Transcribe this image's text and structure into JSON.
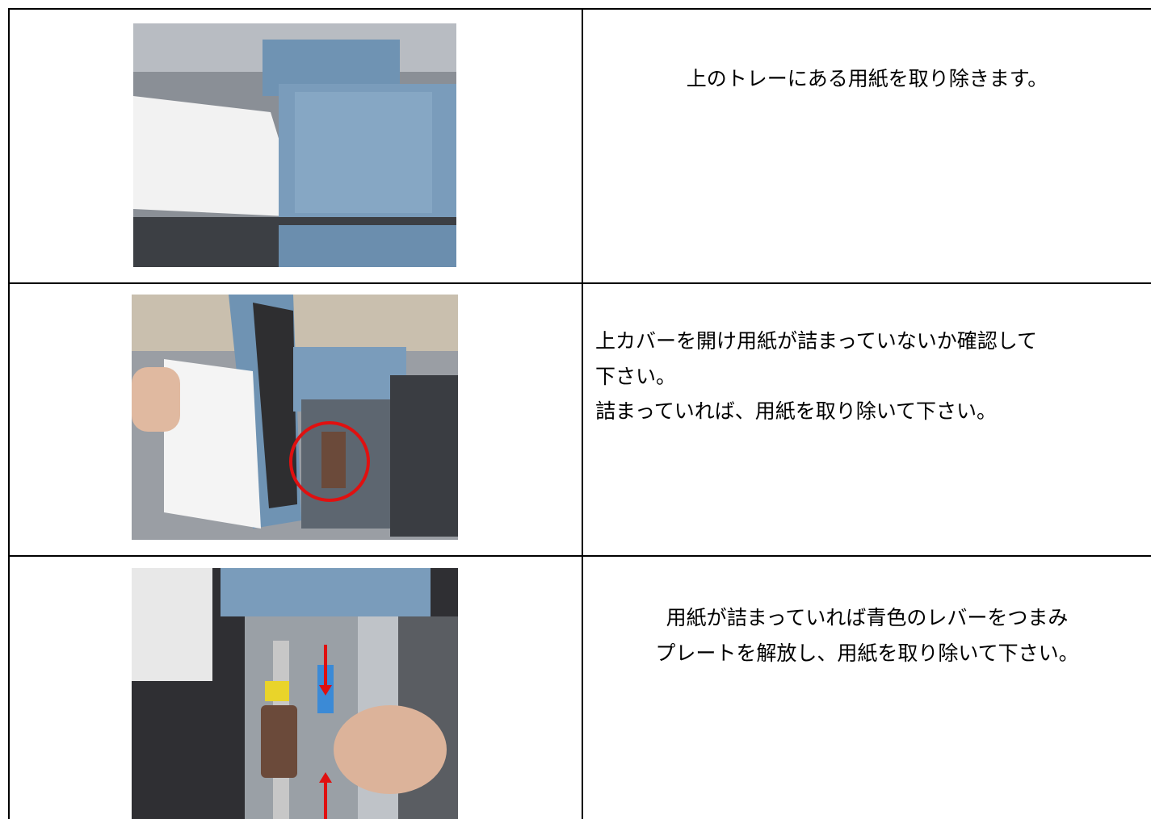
{
  "table": {
    "rows": [
      {
        "text": [
          "上のトレーにある用紙を取り除きます。"
        ]
      },
      {
        "text": [
          "上カバーを開け用紙が詰まっていないか確認して",
          "下さい。",
          "詰まっていれば、用紙を取り除いて下さい。"
        ]
      },
      {
        "text": [
          "用紙が詰まっていれば青色のレバーをつまみ",
          "プレートを解放し、用紙を取り除いて下さい。"
        ]
      }
    ]
  }
}
